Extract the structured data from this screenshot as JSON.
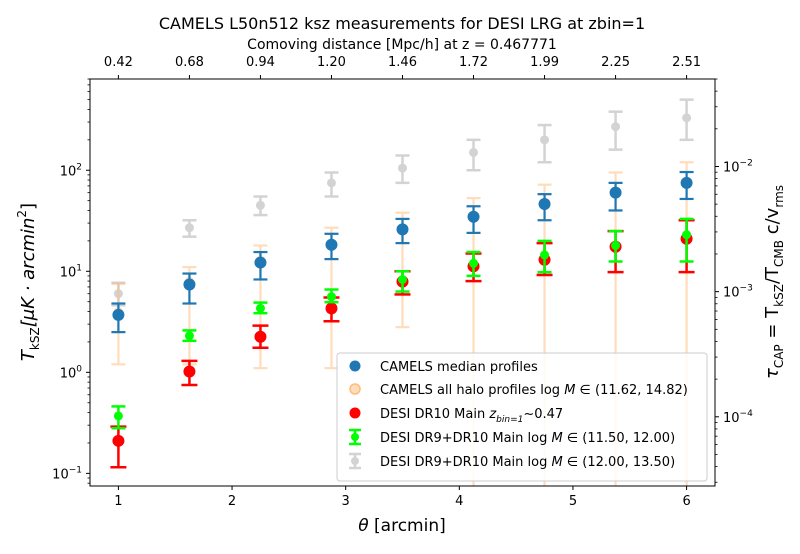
{
  "chart_data": {
    "type": "scatter",
    "title": "CAMELS L50n512 ksz measurements for DESI LRG at zbin=1",
    "top_axis": {
      "label": "Comoving distance [Mpc/h] at z = 0.467771",
      "ticks": [
        "0.42",
        "0.68",
        "0.94",
        "1.20",
        "1.46",
        "1.72",
        "1.99",
        "2.25",
        "2.51"
      ]
    },
    "xlabel": "θ [arcmin]",
    "ylabel": {
      "pre": "T",
      "sub": "kSZ",
      "post": "[μK · arcmin",
      "sup": "2",
      "end": "]"
    },
    "right_ylabel": {
      "t1": "τ",
      "t1sub": "CAP",
      "t2": " = T",
      "t2sub": "kSZ",
      "t3": "/T",
      "t3sub": "CMB",
      "t4": " c/v",
      "t4sub": "rms"
    },
    "x_ticks": [
      1,
      2,
      3,
      4,
      5,
      6
    ],
    "xlim": [
      0.75,
      6.25
    ],
    "y_scale": "log",
    "ylim": [
      0.075,
      800
    ],
    "y_ticks": [
      {
        "value": 0.1,
        "base": "10",
        "exp": "−1"
      },
      {
        "value": 1,
        "base": "10",
        "exp": "0"
      },
      {
        "value": 10,
        "base": "10",
        "exp": "1"
      },
      {
        "value": 100,
        "base": "10",
        "exp": "2"
      }
    ],
    "right_axis": {
      "scale": "log",
      "ylim": [
        2.8e-05,
        0.05
      ],
      "ticks": [
        {
          "value": 0.0001,
          "base": "10",
          "exp": "−4"
        },
        {
          "value": 0.001,
          "base": "10",
          "exp": "−3"
        },
        {
          "value": 0.01,
          "base": "10",
          "exp": "−2"
        }
      ]
    },
    "legend_position": "lower-right",
    "series": [
      {
        "key": "gray",
        "legend": "DESI DR9+DR10 Main log M ∈ (12.00, 13.50)",
        "legend_parts": {
          "pre": "DESI DR9+DR10 Main log",
          "it": "M",
          "post": " ∈ (12.00, 13.50)"
        },
        "color": "#d3d3d3",
        "x": [
          1.0,
          1.625,
          2.25,
          2.875,
          3.5,
          4.125,
          4.75,
          5.375,
          6.0
        ],
        "y": [
          6.0,
          27.0,
          45.0,
          75.0,
          105.0,
          150.0,
          200.0,
          270.0,
          330.0
        ],
        "lo": [
          4.6,
          22.0,
          36.0,
          55.0,
          75.0,
          100.0,
          120.0,
          160.0,
          200.0
        ],
        "hi": [
          7.7,
          32.0,
          55.0,
          95.0,
          140.0,
          200.0,
          280.0,
          380.0,
          500.0
        ]
      },
      {
        "key": "camels-all",
        "legend": "CAMELS all halo profiles log M ∈ (11.62, 14.82)",
        "legend_parts": {
          "pre": "CAMELS all halo profiles log",
          "it": "M",
          "post": " ∈ (11.62, 14.82)"
        },
        "color": "#ffbb78",
        "x": [
          1.0,
          1.625,
          2.25,
          2.875,
          3.5,
          4.125,
          4.75,
          5.375,
          6.0
        ],
        "y": [
          4.0,
          8.0,
          13.0,
          19.0,
          26.0,
          35.0,
          47.0,
          60.0,
          75.0
        ],
        "lo": [
          1.2,
          1.2,
          1.1,
          1.1,
          2.8,
          0.07,
          0.07,
          0.07,
          0.07
        ],
        "hi": [
          7.5,
          11.0,
          18.0,
          27.0,
          38.0,
          53.0,
          72.0,
          95.0,
          120.0
        ]
      },
      {
        "key": "camels-median",
        "legend": "CAMELS median profiles",
        "color": "#1f77b4",
        "x": [
          1.0,
          1.625,
          2.25,
          2.875,
          3.5,
          4.125,
          4.75,
          5.375,
          6.0
        ],
        "y": [
          3.7,
          7.4,
          12.2,
          18.3,
          26.0,
          34.7,
          46.3,
          60.0,
          75.0
        ],
        "lo": [
          2.5,
          4.8,
          8.3,
          13.2,
          19.0,
          24.0,
          32.0,
          40.0,
          52.0
        ],
        "hi": [
          4.8,
          9.5,
          15.5,
          23.5,
          33.0,
          44.0,
          58.0,
          75.0,
          96.0
        ]
      },
      {
        "key": "desi-red",
        "legend": "DESI DR10 Main z_bin=1 ~0.47",
        "legend_parts": {
          "pre": "DESI DR10 Main",
          "z": "z",
          "sub": "bin=1",
          "post": "~0.47"
        },
        "color": "#ff0000",
        "x": [
          1.0,
          1.625,
          2.25,
          2.875,
          3.5,
          4.125,
          4.75,
          5.375,
          6.0
        ],
        "y": [
          0.21,
          1.02,
          2.25,
          4.3,
          7.9,
          11.2,
          13.0,
          17.5,
          21.0
        ],
        "lo": [
          0.115,
          0.75,
          1.75,
          3.2,
          5.9,
          8.0,
          9.2,
          9.8,
          9.8
        ],
        "hi": [
          0.29,
          1.3,
          2.9,
          5.5,
          10.0,
          15.0,
          19.0,
          25.0,
          32.0
        ]
      },
      {
        "key": "desi-green",
        "legend": "DESI DR9+DR10 Main log M ∈ (11.50, 12.00)",
        "legend_parts": {
          "pre": "DESI DR9+DR10 Main log",
          "it": "M",
          "post": " ∈ (11.50, 12.00)"
        },
        "color": "#00ff00",
        "x": [
          1.0,
          1.625,
          2.25,
          2.875,
          3.5,
          4.125,
          4.75,
          5.375,
          6.0
        ],
        "y": [
          0.37,
          2.3,
          4.3,
          5.6,
          8.3,
          12.0,
          14.5,
          18.0,
          23.0
        ],
        "lo": [
          0.28,
          2.05,
          3.85,
          4.95,
          6.3,
          9.0,
          9.8,
          12.5,
          12.5
        ],
        "hi": [
          0.46,
          2.6,
          4.9,
          6.6,
          10.0,
          15.5,
          20.0,
          25.0,
          33.0
        ]
      }
    ]
  }
}
